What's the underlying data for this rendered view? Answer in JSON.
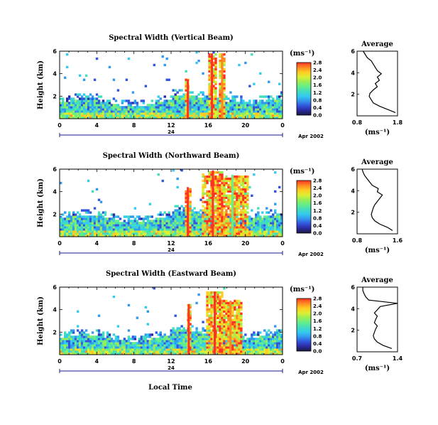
{
  "xlabel": "Local Time",
  "colors": {
    "frame": "#000000",
    "date_axis": "#1a1a8c"
  },
  "colorbar_palette": [
    "#1a1a40",
    "#2a2aa0",
    "#3355dd",
    "#3399ee",
    "#33ccee",
    "#44ddbb",
    "#66ee88",
    "#99ee55",
    "#ddee33",
    "#ffcc22",
    "#ff8822",
    "#ff3322"
  ],
  "chart_data": [
    {
      "type": "heatmap",
      "title": "Spectral Width (Vertical Beam)",
      "ylabel": "Height (km)",
      "ylim": [
        0,
        6
      ],
      "yticks": [
        "2",
        "4",
        "6"
      ],
      "xlim": [
        0,
        24
      ],
      "xticks": [
        "0",
        "4",
        "8",
        "12",
        "16",
        "20",
        "0"
      ],
      "date_axis": {
        "label": "24",
        "date": "Apr 2002"
      },
      "colorbar": {
        "unit": "(ms⁻¹)",
        "ticks": [
          "0.0",
          "0.4",
          "0.8",
          "1.2",
          "1.6",
          "2.0",
          "2.4",
          "2.8"
        ]
      },
      "features": [
        {
          "hour": 13.8,
          "top_km": 3.5,
          "w": 0.25,
          "color": "#ff3322"
        },
        {
          "hour": 16.4,
          "top_km": 5.8,
          "w": 0.5,
          "color": "#ff3322"
        },
        {
          "hour": 17.5,
          "top_km": 5.8,
          "w": 0.4,
          "color": "#ff8822"
        }
      ],
      "base_top_km": 1.4,
      "profile": {
        "title": "Average",
        "xlabel": "(ms⁻¹)",
        "xticks": [
          "0.8",
          "1.8"
        ],
        "xlim": [
          0.8,
          1.8
        ],
        "ylim": [
          0,
          6
        ],
        "yticks": [
          "2",
          "4",
          "6"
        ],
        "height_km": [
          0.3,
          0.6,
          0.9,
          1.2,
          1.5,
          1.8,
          2.1,
          2.4,
          2.7,
          3.0,
          3.3,
          3.6,
          3.9,
          4.2,
          4.5,
          4.8,
          5.1,
          5.4,
          5.7,
          6.0
        ],
        "width": [
          1.75,
          1.55,
          1.35,
          1.2,
          1.15,
          1.1,
          1.12,
          1.2,
          1.3,
          1.25,
          1.35,
          1.3,
          1.4,
          1.3,
          1.25,
          1.2,
          1.15,
          1.05,
          1.0,
          0.95
        ]
      }
    },
    {
      "type": "heatmap",
      "title": "Spectral Width (Northward Beam)",
      "ylabel": "Height (km)",
      "ylim": [
        0,
        6
      ],
      "yticks": [
        "2",
        "4",
        "6"
      ],
      "xlim": [
        0,
        24
      ],
      "xticks": [
        "0",
        "4",
        "8",
        "12",
        "16",
        "20",
        "0"
      ],
      "date_axis": {
        "label": "24",
        "date": "Apr 2002"
      },
      "colorbar": {
        "unit": "(ms⁻¹)",
        "ticks": [
          "0.0",
          "0.4",
          "0.8",
          "1.2",
          "1.6",
          "2.0",
          "2.4",
          "2.8"
        ]
      },
      "features": [
        {
          "hour": 13.8,
          "top_km": 4.4,
          "w": 0.3,
          "color": "#ff3322"
        },
        {
          "hour": 16.5,
          "top_km": 5.9,
          "w": 1.2,
          "color": "#ff3322"
        },
        {
          "hour": 18.6,
          "top_km": 5.5,
          "w": 1.8,
          "color": "#66ee88"
        }
      ],
      "base_top_km": 1.6,
      "profile": {
        "title": "Average",
        "xlabel": "(ms⁻¹)",
        "xticks": [
          "0.8",
          "1.6"
        ],
        "xlim": [
          0.8,
          1.6
        ],
        "ylim": [
          0,
          6
        ],
        "yticks": [
          "2",
          "4",
          "6"
        ],
        "height_km": [
          0.3,
          0.6,
          0.9,
          1.2,
          1.5,
          1.8,
          2.1,
          2.4,
          2.7,
          3.0,
          3.3,
          3.6,
          3.9,
          4.2,
          4.5,
          4.8,
          5.1,
          5.4,
          5.7,
          6.0
        ],
        "width": [
          1.5,
          1.4,
          1.25,
          1.15,
          1.1,
          1.08,
          1.1,
          1.12,
          1.15,
          1.2,
          1.25,
          1.3,
          1.2,
          1.22,
          1.1,
          1.05,
          1.0,
          0.95,
          0.92,
          0.9
        ]
      }
    },
    {
      "type": "heatmap",
      "title": "Spectral Width (Eastward Beam)",
      "ylabel": "Height (km)",
      "ylim": [
        0,
        6
      ],
      "yticks": [
        "2",
        "4",
        "6"
      ],
      "xlim": [
        0,
        24
      ],
      "xticks": [
        "0",
        "4",
        "8",
        "12",
        "16",
        "20",
        "0"
      ],
      "date_axis": {
        "label": "24",
        "date": "Apr 2002"
      },
      "colorbar": {
        "unit": "(ms⁻¹)",
        "ticks": [
          "0.0",
          "0.4",
          "0.8",
          "1.2",
          "1.6",
          "2.0",
          "2.4",
          "2.8"
        ]
      },
      "features": [
        {
          "hour": 13.9,
          "top_km": 4.5,
          "w": 0.3,
          "color": "#ff3322"
        },
        {
          "hour": 16.7,
          "top_km": 5.6,
          "w": 1.0,
          "color": "#ff3322"
        },
        {
          "hour": 18.4,
          "top_km": 4.8,
          "w": 1.2,
          "color": "#ff8822"
        }
      ],
      "base_top_km": 1.5,
      "profile": {
        "title": "Average",
        "xlabel": "(ms⁻¹)",
        "xticks": [
          "0.7",
          "1.4"
        ],
        "xlim": [
          0.7,
          1.4
        ],
        "ylim": [
          0,
          6
        ],
        "yticks": [
          "2",
          "4",
          "6"
        ],
        "height_km": [
          0.3,
          0.6,
          0.9,
          1.2,
          1.5,
          1.8,
          2.1,
          2.4,
          2.7,
          3.0,
          3.3,
          3.6,
          3.9,
          4.2,
          4.5,
          4.8,
          5.1,
          5.4,
          5.7,
          6.0
        ],
        "width": [
          1.3,
          1.15,
          1.05,
          1.0,
          0.98,
          1.0,
          1.02,
          1.05,
          1.0,
          1.02,
          1.05,
          1.0,
          1.05,
          1.1,
          1.4,
          0.9,
          0.85,
          0.82,
          0.8,
          0.8
        ]
      }
    }
  ]
}
